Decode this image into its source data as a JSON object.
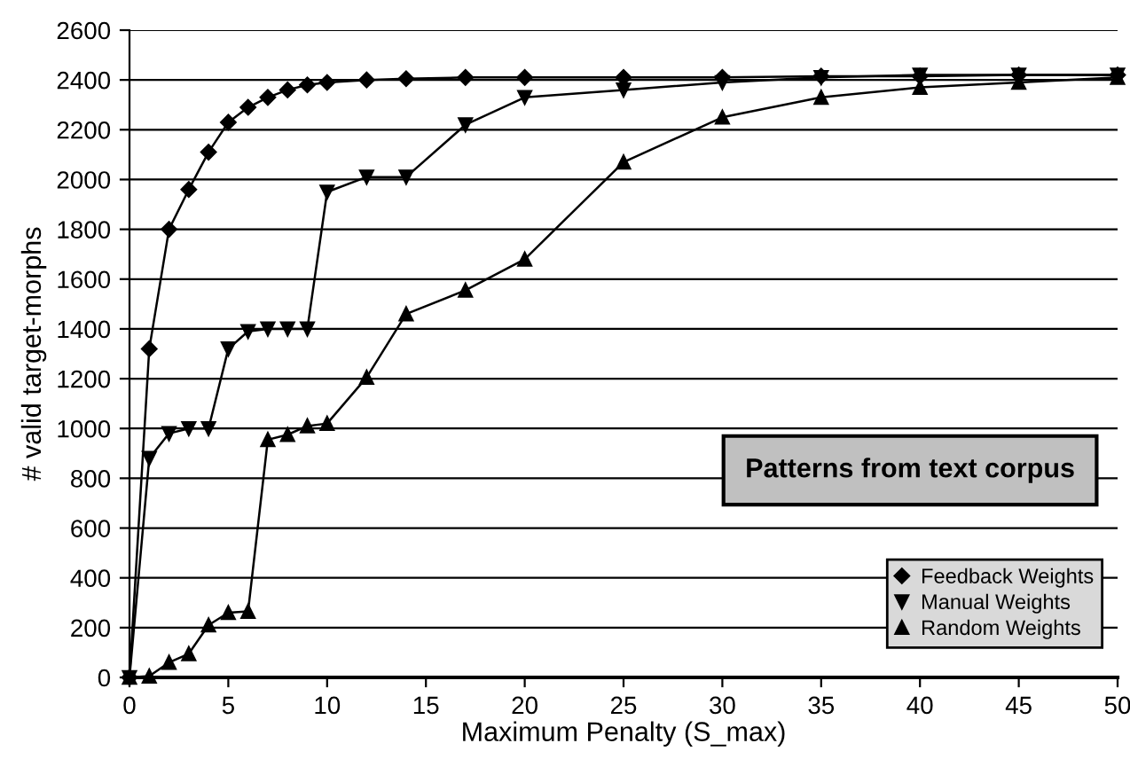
{
  "chart_data": {
    "type": "line",
    "xlabel": "Maximum Penalty (S_max)",
    "ylabel": "# valid target-morphs",
    "x": [
      0,
      1,
      2,
      3,
      4,
      5,
      6,
      7,
      8,
      9,
      10,
      12,
      14,
      17,
      20,
      25,
      30,
      35,
      40,
      45,
      50
    ],
    "series": [
      {
        "name": "Feedback Weights",
        "color": "#000000",
        "marker": "diamond",
        "values": [
          0,
          1320,
          1800,
          1960,
          2110,
          2230,
          2290,
          2330,
          2360,
          2380,
          2390,
          2400,
          2405,
          2410,
          2410,
          2410,
          2410,
          2415,
          2415,
          2420,
          2420
        ]
      },
      {
        "name": "Manual Weights",
        "color": "#000000",
        "marker": "triangle_down",
        "values": [
          0,
          880,
          980,
          1000,
          1000,
          1320,
          1390,
          1400,
          1400,
          1400,
          1950,
          2010,
          2010,
          2220,
          2330,
          2360,
          2390,
          2410,
          2420,
          2420,
          2420
        ]
      },
      {
        "name": "Random Weights",
        "color": "#000000",
        "marker": "triangle",
        "values": [
          0,
          5,
          60,
          95,
          210,
          260,
          265,
          955,
          975,
          1010,
          1020,
          1205,
          1460,
          1555,
          1680,
          2070,
          2250,
          2330,
          2370,
          2390,
          2410
        ]
      }
    ],
    "annotations": [
      "Patterns from text corpus"
    ],
    "xlim": [
      0,
      50
    ],
    "xticks": [
      0,
      5,
      10,
      15,
      20,
      25,
      30,
      35,
      40,
      45,
      50
    ],
    "ylim": [
      0,
      2600
    ],
    "yticks": [
      0,
      200,
      400,
      600,
      800,
      1000,
      1200,
      1400,
      1600,
      1800,
      2000,
      2200,
      2400,
      2600
    ],
    "grid": "y",
    "legend": "bottom right",
    "line_style": "solid"
  }
}
